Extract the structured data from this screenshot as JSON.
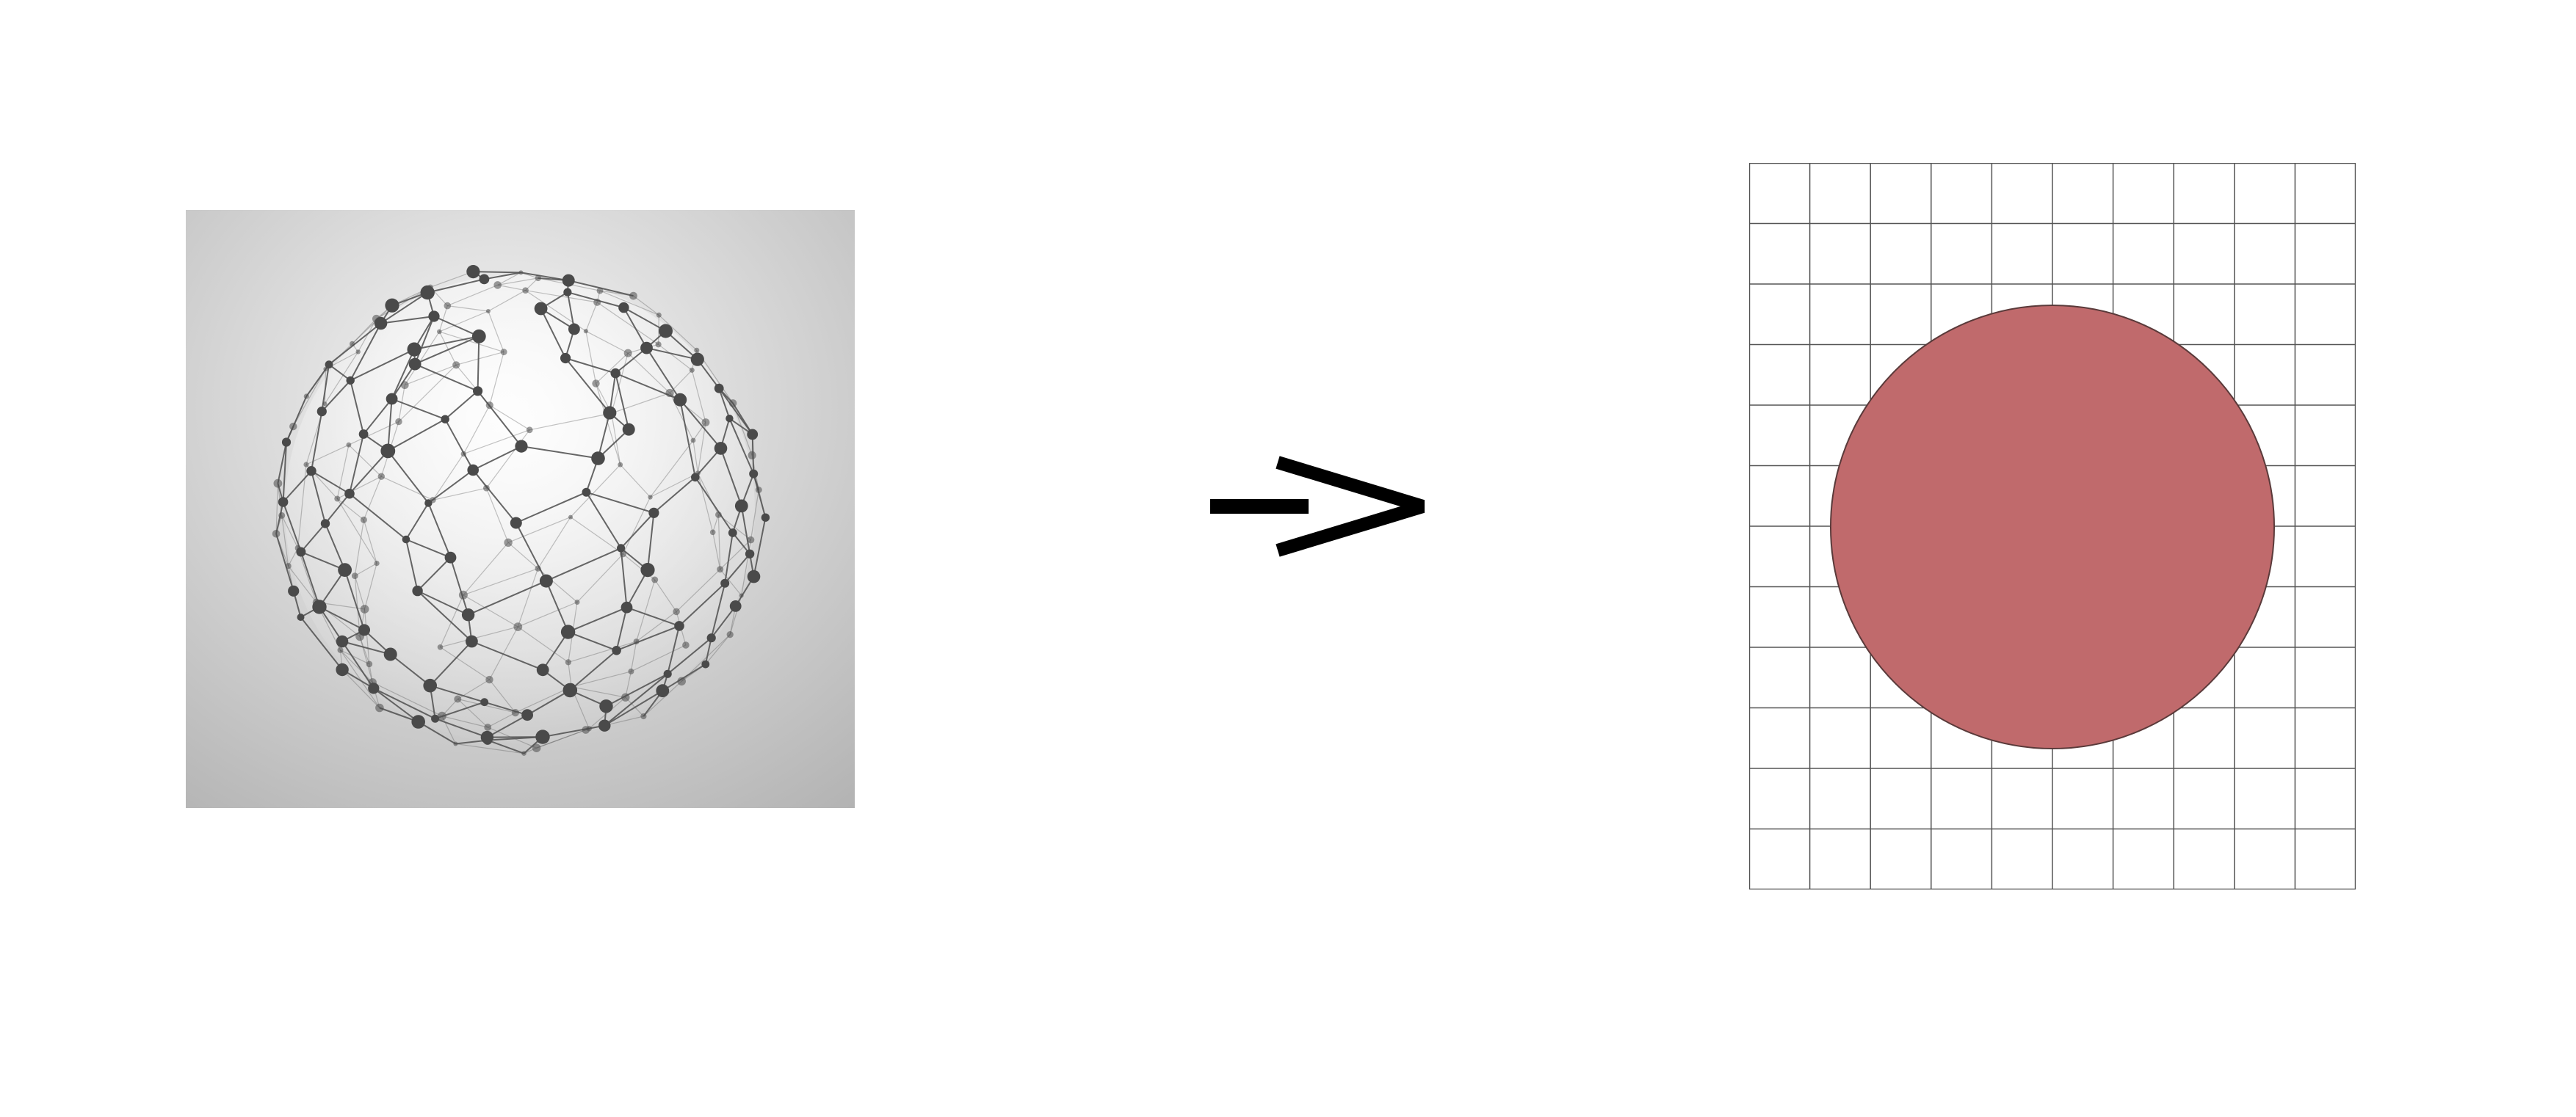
{
  "left_image": {
    "icon": "wireframe-network-sphere-icon",
    "background_center_color": "#f7f7f7",
    "background_edge_color": "#b3b3b3",
    "node_color": "#4a4a4a",
    "edge_color": "#555555"
  },
  "arrow": {
    "icon": "right-arrow-icon",
    "color": "#000000"
  },
  "right_image": {
    "icon": "circle-on-grid-icon",
    "grid_columns": 10,
    "grid_rows": 12,
    "grid_line_color": "#555555",
    "circle_fill": "#c06a6c",
    "circle_stroke": "#5a3a3a"
  }
}
